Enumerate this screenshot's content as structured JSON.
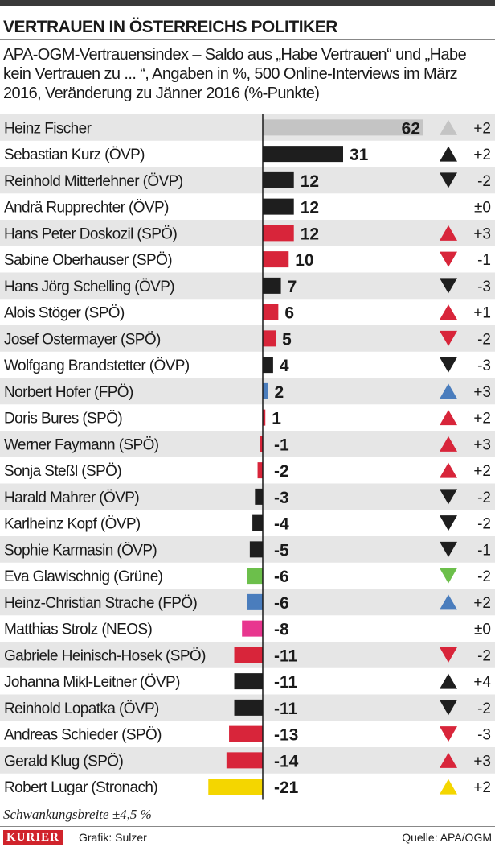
{
  "chart_data": {
    "type": "bar",
    "title": "VERTRAUEN IN ÖSTERREICHS POLITIKER",
    "subtitle": "APA-OGM-Vertrauensindex – Saldo aus „Habe Vertrauen“ und „Habe kein Vertrauen zu ... “, Angaben in %, 500 Online-Interviews im März 2016, Veränderung zu Jänner 2016 (%-Punkte)",
    "categories": [
      "Heinz Fischer",
      "Sebastian Kurz (ÖVP)",
      "Reinhold Mitterlehner (ÖVP)",
      "Andrä Rupprechter (ÖVP)",
      "Hans Peter Doskozil (SPÖ)",
      "Sabine Oberhauser (SPÖ)",
      "Hans Jörg Schelling (ÖVP)",
      "Alois Stöger (SPÖ)",
      "Josef Ostermayer (SPÖ)",
      "Wolfgang Brandstetter (ÖVP)",
      "Norbert Hofer (FPÖ)",
      "Doris Bures (SPÖ)",
      "Werner Faymann (SPÖ)",
      "Sonja Steßl (SPÖ)",
      "Harald Mahrer (ÖVP)",
      "Karlheinz Kopf (ÖVP)",
      "Sophie Karmasin (ÖVP)",
      "Eva Glawischnig (Grüne)",
      "Heinz-Christian Strache (FPÖ)",
      "Matthias Strolz (NEOS)",
      "Gabriele Heinisch-Hosek (SPÖ)",
      "Johanna Mikl-Leitner (ÖVP)",
      "Reinhold Lopatka (ÖVP)",
      "Andreas Schieder (SPÖ)",
      "Gerald Klug (SPÖ)",
      "Robert Lugar (Stronach)"
    ],
    "values": [
      62,
      31,
      12,
      12,
      12,
      10,
      7,
      6,
      5,
      4,
      2,
      1,
      -1,
      -2,
      -3,
      -4,
      -5,
      -6,
      -6,
      -8,
      -11,
      -11,
      -11,
      -13,
      -14,
      -21
    ],
    "value_labels": [
      "62",
      "31",
      "12",
      "12",
      "12",
      "10",
      "7",
      "6",
      "5",
      "4",
      "2",
      "1",
      "-1",
      "-2",
      "-3",
      "-4",
      "-5",
      "-6",
      "-6",
      "-8",
      "-11",
      "-11",
      "-11",
      "-13",
      "-14",
      "-21"
    ],
    "party_colors": [
      "#c4c4c4",
      "#1e1e1e",
      "#1e1e1e",
      "#1e1e1e",
      "#d8253a",
      "#d8253a",
      "#1e1e1e",
      "#d8253a",
      "#d8253a",
      "#1e1e1e",
      "#4a7dbd",
      "#d8253a",
      "#d8253a",
      "#d8253a",
      "#1e1e1e",
      "#1e1e1e",
      "#1e1e1e",
      "#6cbf4b",
      "#4a7dbd",
      "#e8368f",
      "#d8253a",
      "#1e1e1e",
      "#1e1e1e",
      "#d8253a",
      "#d8253a",
      "#f4d600"
    ],
    "change_labels": [
      "+2",
      "+2",
      "-2",
      "±0",
      "+3",
      "-1",
      "-3",
      "+1",
      "-2",
      "-3",
      "+3",
      "+2",
      "+3",
      "+2",
      "-2",
      "-2",
      "-1",
      "-2",
      "+2",
      "±0",
      "-2",
      "+4",
      "-2",
      "-3",
      "+3",
      "+2"
    ],
    "change_directions": [
      "up",
      "up",
      "down",
      "none",
      "up",
      "down",
      "down",
      "up",
      "down",
      "down",
      "up",
      "up",
      "up",
      "up",
      "down",
      "down",
      "down",
      "down",
      "up",
      "none",
      "down",
      "up",
      "down",
      "down",
      "up",
      "up"
    ],
    "row_stripe_color": "#e6e6e6",
    "zero_line_color": "#1a1a1a"
  },
  "footer": {
    "note": "Schwankungsbreite ±4,5 %",
    "brand": "KURIER",
    "credit": "Grafik: Sulzer",
    "source": "Quelle: APA/OGM"
  }
}
